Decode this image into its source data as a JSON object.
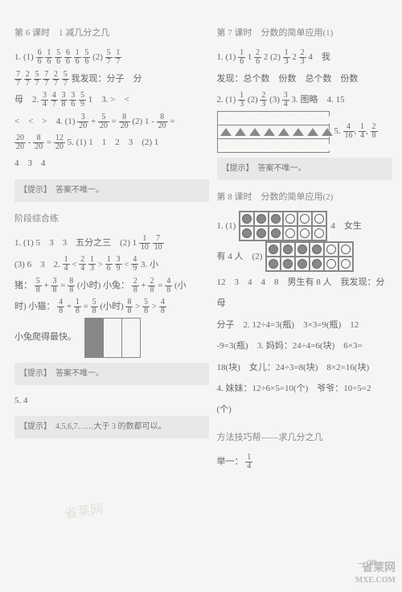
{
  "left": {
    "lesson6": {
      "title": "第 6 课时　1 减几分之几",
      "q1_prefix": "1. (1)",
      "f1": {
        "n": "6",
        "d": "6"
      },
      "f2": {
        "n": "1",
        "d": "6"
      },
      "f3": {
        "n": "5",
        "d": "6"
      },
      "f4": {
        "n": "6",
        "d": "6"
      },
      "f5": {
        "n": "1",
        "d": "6"
      },
      "f6": {
        "n": "5",
        "d": "6"
      },
      "q1_2": "(2)",
      "f7": {
        "n": "5",
        "d": "7"
      },
      "f7b": {
        "n": "1",
        "d": "7"
      },
      "f8": {
        "n": "7",
        "d": "7"
      },
      "f9": {
        "n": "2",
        "d": "7"
      },
      "f10": {
        "n": "5",
        "d": "7"
      },
      "f11": {
        "n": "7",
        "d": "7"
      },
      "f12": {
        "n": "2",
        "d": "7"
      },
      "f13": {
        "n": "5",
        "d": "7"
      },
      "discover": "我发现：分子　分",
      "line2a": "母　2.",
      "f14": {
        "n": "3",
        "d": "4"
      },
      "f15": {
        "n": "4",
        "d": "7"
      },
      "f16": {
        "n": "3",
        "d": "8"
      },
      "f17": {
        "n": "3",
        "d": "6"
      },
      "f18": {
        "n": "5",
        "d": "9"
      },
      "q3": "1　3. >　<",
      "line3": "<　<　>　4. (1)",
      "f19": {
        "n": "3",
        "d": "20"
      },
      "plus": "+",
      "f20": {
        "n": "5",
        "d": "20"
      },
      "eq": "=",
      "f21": {
        "n": "8",
        "d": "20"
      },
      "q4_2": "(2) 1 -",
      "f22": {
        "n": "8",
        "d": "20"
      },
      "eq2": "=",
      "f23": {
        "n": "20",
        "d": "20"
      },
      "minus": "-",
      "f24": {
        "n": "8",
        "d": "20"
      },
      "eq3": "=",
      "f25": {
        "n": "12",
        "d": "20"
      },
      "q5": "5. (1) 1　1　2　3　(2) 1",
      "line5": "4　3　4"
    },
    "hint1": "【提示】　答案不唯一。",
    "stage": {
      "title": "阶段综合练",
      "q1": "1. (1) 5　3　3　五分之三　(2) 1",
      "f1": {
        "n": "1",
        "d": "10"
      },
      "f2": {
        "n": "7",
        "d": "10"
      },
      "q1_3": "(3) 6　3　2.",
      "f3": {
        "n": "1",
        "d": "4"
      },
      "lt": "<",
      "f4": {
        "n": "2",
        "d": "4"
      },
      "f5": {
        "n": "1",
        "d": "3"
      },
      "gt": ">",
      "f6": {
        "n": "1",
        "d": "6"
      },
      "f7": {
        "n": "3",
        "d": "9"
      },
      "lt2": "<",
      "f8": {
        "n": "4",
        "d": "9"
      },
      "q3": "3. 小",
      "pig": "猪：",
      "f9": {
        "n": "5",
        "d": "8"
      },
      "plus": "+",
      "f10": {
        "n": "3",
        "d": "8"
      },
      "eq": "=",
      "f11": {
        "n": "8",
        "d": "8"
      },
      "hour": "(小时)",
      "rabbit": "小兔：",
      "f12": {
        "n": "2",
        "d": "8"
      },
      "plus2": "+",
      "f13": {
        "n": "2",
        "d": "8"
      },
      "eq2": "=",
      "f14": {
        "n": "4",
        "d": "8"
      },
      "hour2": "(小",
      "shi": "时)",
      "cat": "小猫：",
      "f15": {
        "n": "4",
        "d": "8"
      },
      "plus3": "+",
      "f16": {
        "n": "1",
        "d": "8"
      },
      "eq3": "=",
      "f17": {
        "n": "5",
        "d": "8"
      },
      "hour3": "(小时)",
      "f18": {
        "n": "8",
        "d": "8"
      },
      "gt2": ">",
      "f19": {
        "n": "5",
        "d": "8"
      },
      "gt3": ">",
      "f20": {
        "n": "4",
        "d": "8"
      },
      "fastest": "小兔爬得最快。"
    },
    "hint2": "【提示】　答案不唯一。",
    "stage54": "5. 4",
    "hint3": "【提示】　4,5,6,7……大于 3 的数都可以。"
  },
  "right": {
    "lesson7": {
      "title": "第 7 课时　分数的简单应用(1)",
      "q1": "1. (1)",
      "f1": {
        "n": "1",
        "d": "6"
      },
      "one": "1",
      "f2": {
        "n": "2",
        "d": "6"
      },
      "two": "2",
      "q1_2": "(2)",
      "f3": {
        "n": "1",
        "d": "3"
      },
      "two2": "2",
      "f4": {
        "n": "2",
        "d": "3"
      },
      "four": "4　我",
      "discover": "发现：总个数　份数　总个数　份数",
      "q2": "2. (1)",
      "f5": {
        "n": "1",
        "d": "3"
      },
      "q2_2": "(2)",
      "f6": {
        "n": "2",
        "d": "3"
      },
      "q2_3": "(3)",
      "f7": {
        "n": "3",
        "d": "4"
      },
      "q3": "3. 图略　4. 15",
      "q5": "5.",
      "f8": {
        "n": "4",
        "d": "16"
      },
      "f8b": {
        "n": "1",
        "d": "4"
      },
      "f9": {
        "n": "2",
        "d": "8"
      }
    },
    "hint1": "【提示】　答案不唯一。",
    "lesson8": {
      "title": "第 8 课时　分数的简单应用(2)",
      "q1": "1. (1)",
      "four_girl": "4　女生",
      "has4": "有 4 人　(2)",
      "line": "12　3　4　4　8　男生有 8 人　我发现：分母",
      "line2": "分子　2. 12÷4=3(瓶)　3×3=9(瓶)　12",
      "line3": "-9=3(瓶)　3. 妈妈：24÷4=6(块)　6×3=",
      "line4": "18(块)　女儿：24÷3=8(块)　8×2=16(块)",
      "line5": "4. 妹妹：12÷6×5=10(个)　爷爷：10÷5=2",
      "line6": "(个)"
    },
    "method": {
      "title": "方法技巧帮——求几分之几",
      "ju": "举一：",
      "f1": {
        "n": "1",
        "d": "4"
      }
    }
  },
  "pagenum": "— 28 —",
  "watermark": {
    "l1": "省莱网",
    "l2": "MXE.COM"
  },
  "wm_faint": "省莱网"
}
